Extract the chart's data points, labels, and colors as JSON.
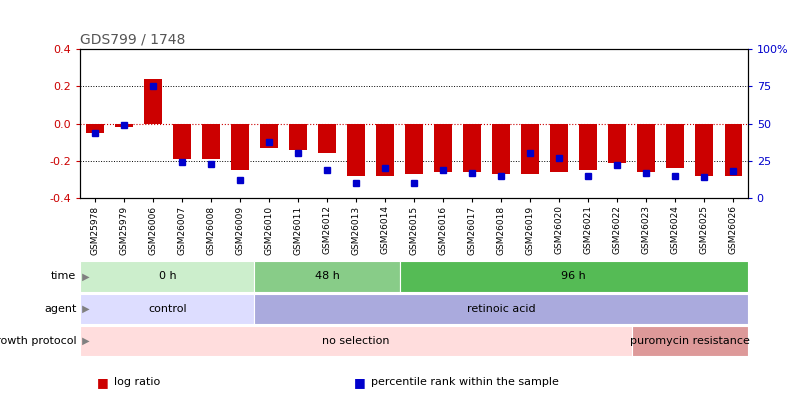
{
  "title": "GDS799 / 1748",
  "samples": [
    "GSM25978",
    "GSM25979",
    "GSM26006",
    "GSM26007",
    "GSM26008",
    "GSM26009",
    "GSM26010",
    "GSM26011",
    "GSM26012",
    "GSM26013",
    "GSM26014",
    "GSM26015",
    "GSM26016",
    "GSM26017",
    "GSM26018",
    "GSM26019",
    "GSM26020",
    "GSM26021",
    "GSM26022",
    "GSM26023",
    "GSM26024",
    "GSM26025",
    "GSM26026"
  ],
  "log_ratio": [
    -0.05,
    -0.02,
    0.24,
    -0.19,
    -0.19,
    -0.25,
    -0.13,
    -0.14,
    -0.16,
    -0.28,
    -0.28,
    -0.27,
    -0.26,
    -0.26,
    -0.27,
    -0.27,
    -0.26,
    -0.25,
    -0.21,
    -0.26,
    -0.24,
    -0.28,
    -0.28
  ],
  "percentile_rank": [
    44,
    49,
    75,
    24,
    23,
    12,
    38,
    30,
    19,
    10,
    20,
    10,
    19,
    17,
    15,
    30,
    27,
    15,
    22,
    17,
    15,
    14,
    18
  ],
  "ylim": [
    -0.4,
    0.4
  ],
  "y2lim": [
    0,
    100
  ],
  "yticks": [
    -0.4,
    -0.2,
    0.0,
    0.2,
    0.4
  ],
  "y2ticks": [
    0,
    25,
    50,
    75,
    100
  ],
  "bar_color": "#cc0000",
  "pct_color": "#0000cc",
  "bg_color": "#ffffff",
  "time_groups": [
    {
      "label": "0 h",
      "start": 0,
      "end": 6,
      "color": "#cceecc"
    },
    {
      "label": "48 h",
      "start": 6,
      "end": 11,
      "color": "#88cc88"
    },
    {
      "label": "96 h",
      "start": 11,
      "end": 23,
      "color": "#55bb55"
    }
  ],
  "agent_groups": [
    {
      "label": "control",
      "start": 0,
      "end": 6,
      "color": "#ddddff"
    },
    {
      "label": "retinoic acid",
      "start": 6,
      "end": 23,
      "color": "#aaaadd"
    }
  ],
  "growth_groups": [
    {
      "label": "no selection",
      "start": 0,
      "end": 19,
      "color": "#ffdddd"
    },
    {
      "label": "puromycin resistance",
      "start": 19,
      "end": 23,
      "color": "#dd9999"
    }
  ],
  "row_labels": [
    "time",
    "agent",
    "growth protocol"
  ],
  "legend_items": [
    {
      "label": "log ratio",
      "color": "#cc0000"
    },
    {
      "label": "percentile rank within the sample",
      "color": "#0000cc"
    }
  ],
  "title_color": "#555555",
  "ytick_color": "#cc0000",
  "y2tick_color": "#0000cc",
  "bar_width": 0.6
}
